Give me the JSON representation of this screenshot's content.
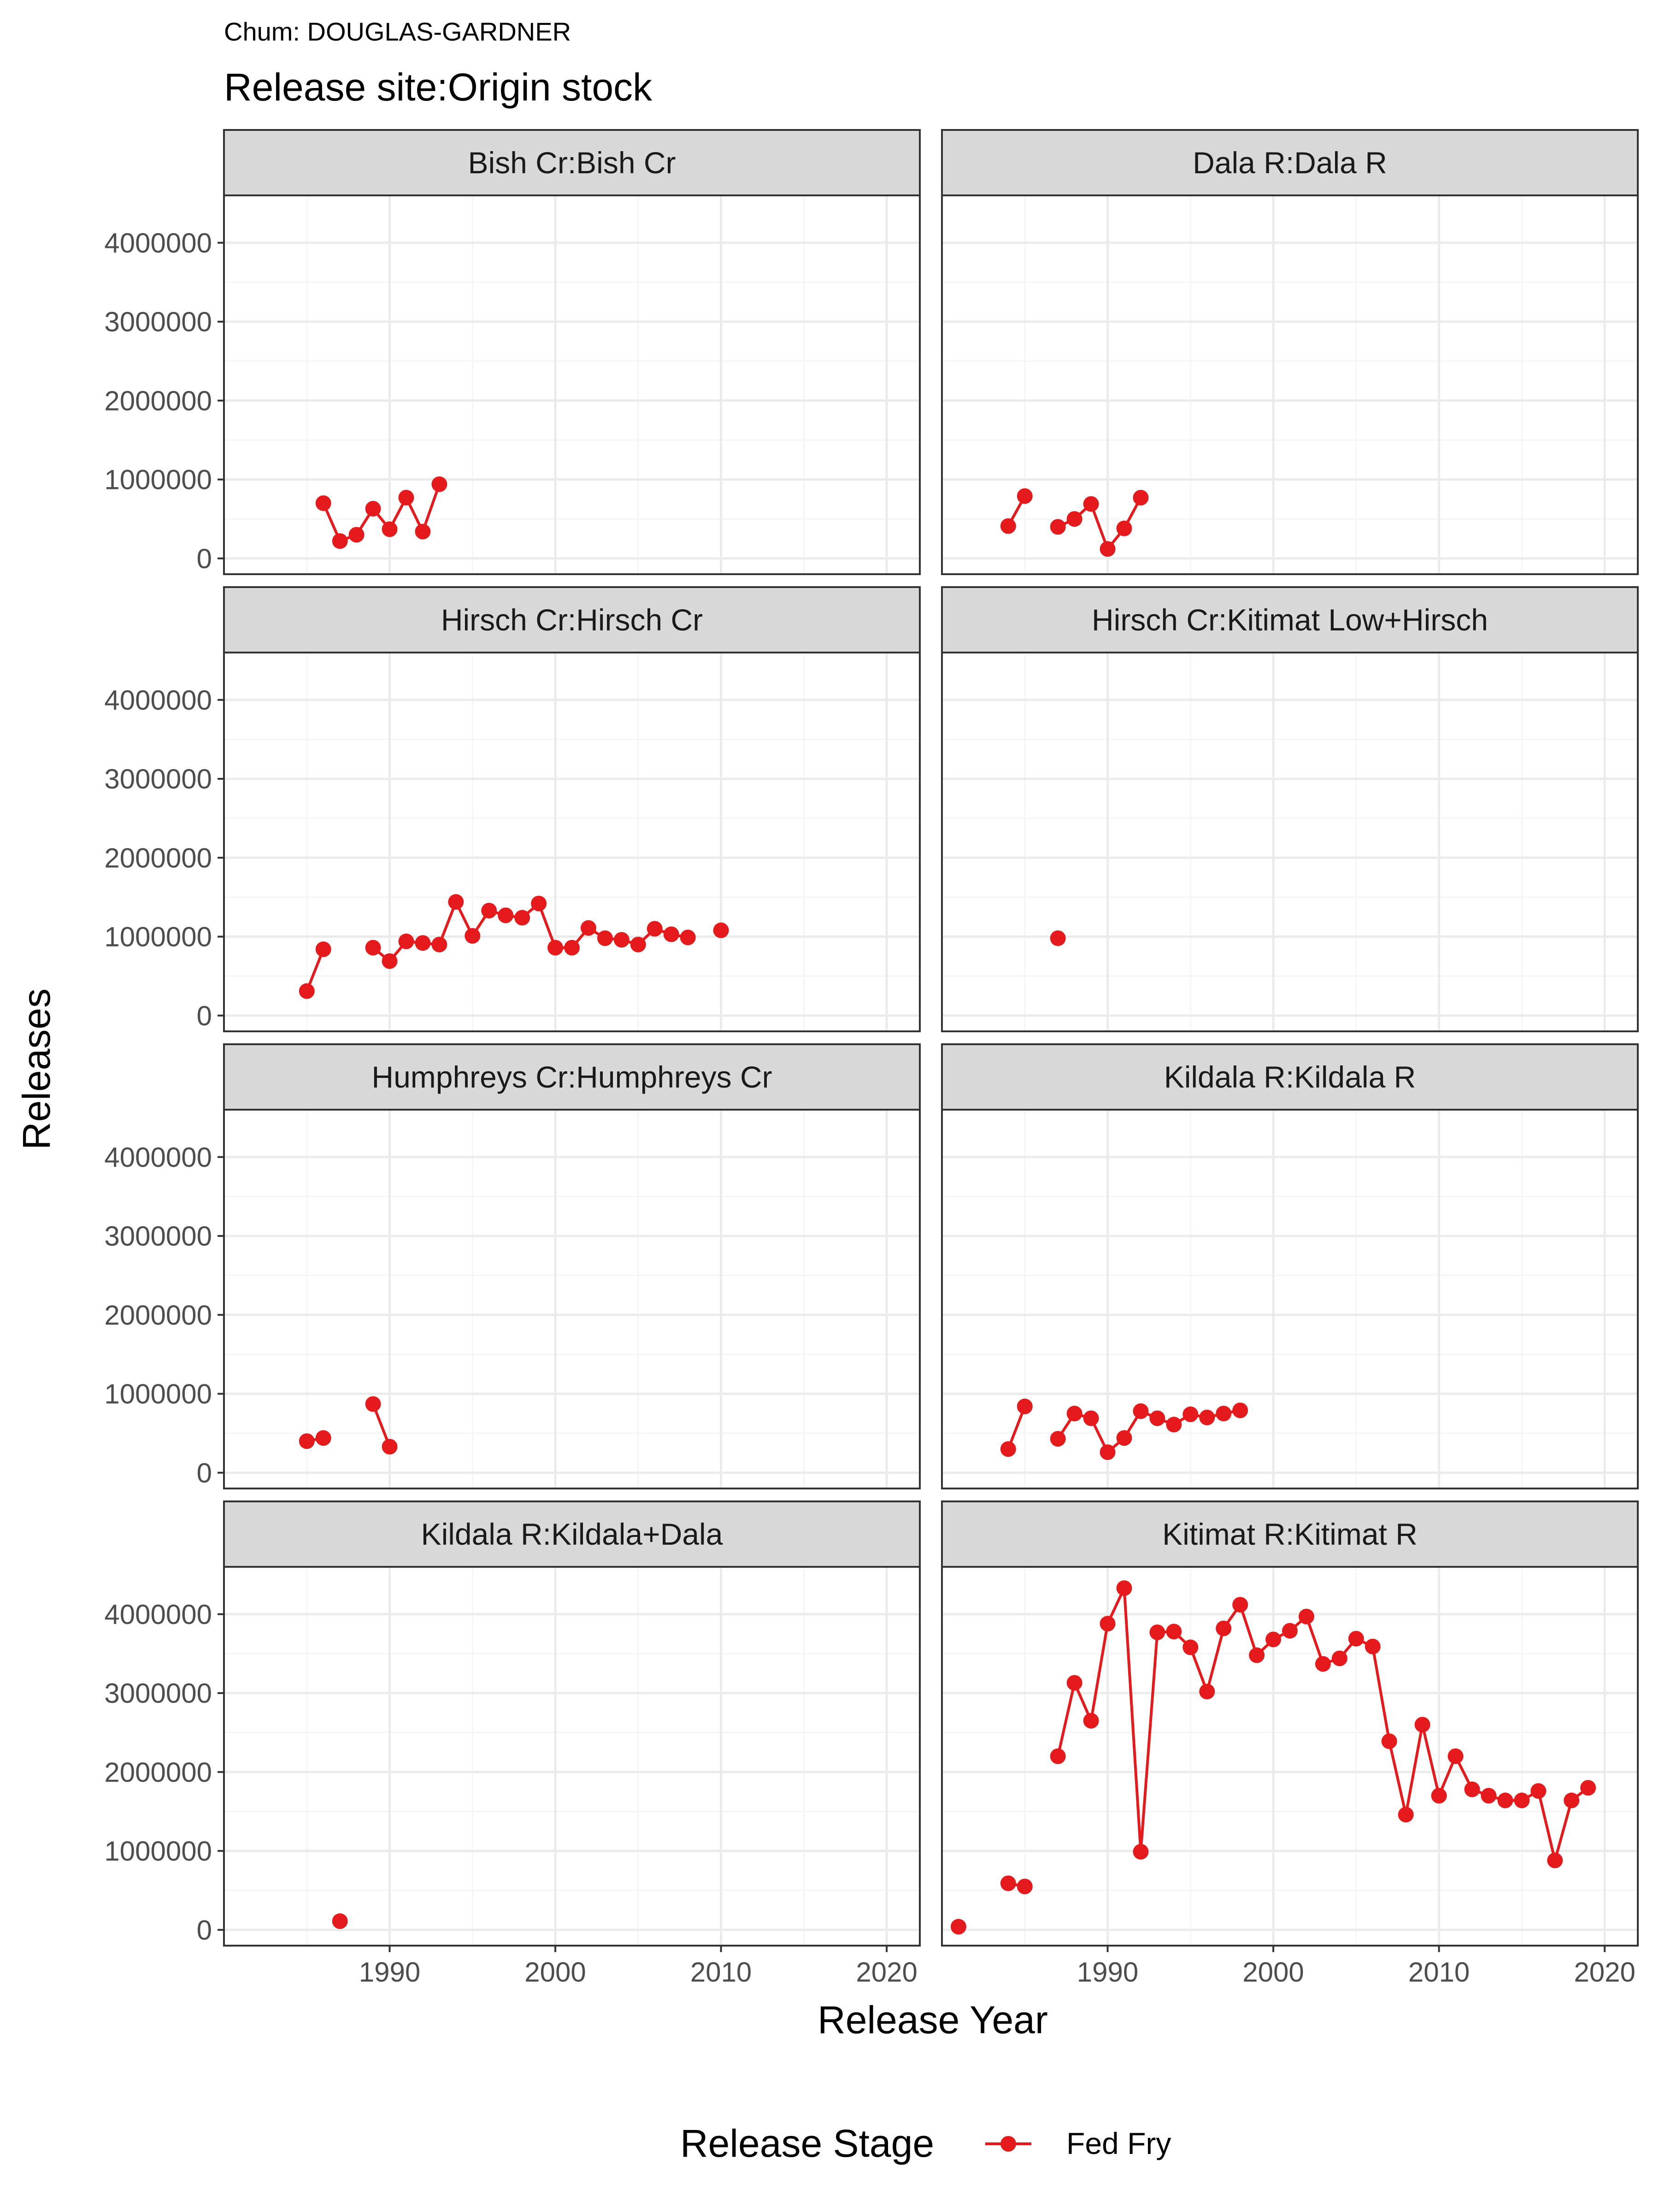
{
  "header": {
    "subtitle": "Chum: DOUGLAS-GARDNER",
    "title": "Release site:Origin stock"
  },
  "colors": {
    "series": "#E41A1C",
    "strip": "#D9D9D9",
    "panel_border": "#333333",
    "grid_major": "#EBEBEB",
    "grid_minor": "#F5F5F5"
  },
  "chart_data": {
    "type": "line",
    "facet_layout": {
      "rows": 4,
      "cols": 2
    },
    "xlabel": "Release Year",
    "ylabel": "Releases",
    "xlim": [
      1980,
      2022
    ],
    "ylim": [
      -200000,
      4600000
    ],
    "x_ticks": [
      1990,
      2000,
      2010,
      2020
    ],
    "y_ticks": [
      0,
      1000000,
      2000000,
      3000000,
      4000000
    ],
    "legend": {
      "title": "Release Stage",
      "position": "bottom",
      "entries": [
        "Fed Fry"
      ]
    },
    "panels": [
      {
        "label": "Bish Cr:Bish Cr",
        "segments": [
          [
            [
              1986,
              700000
            ],
            [
              1987,
              220000
            ],
            [
              1988,
              300000
            ],
            [
              1989,
              630000
            ],
            [
              1990,
              370000
            ],
            [
              1991,
              770000
            ],
            [
              1992,
              340000
            ],
            [
              1993,
              940000
            ]
          ]
        ]
      },
      {
        "label": "Dala R:Dala R",
        "segments": [
          [
            [
              1984,
              410000
            ],
            [
              1985,
              790000
            ]
          ],
          [
            [
              1987,
              400000
            ],
            [
              1988,
              500000
            ],
            [
              1989,
              690000
            ],
            [
              1990,
              120000
            ],
            [
              1991,
              380000
            ],
            [
              1992,
              770000
            ]
          ]
        ]
      },
      {
        "label": "Hirsch Cr:Hirsch Cr",
        "segments": [
          [
            [
              1985,
              310000
            ],
            [
              1986,
              840000
            ]
          ],
          [
            [
              1989,
              860000
            ],
            [
              1990,
              690000
            ],
            [
              1991,
              940000
            ],
            [
              1992,
              920000
            ],
            [
              1993,
              900000
            ],
            [
              1994,
              1440000
            ],
            [
              1995,
              1010000
            ],
            [
              1996,
              1330000
            ],
            [
              1997,
              1270000
            ],
            [
              1998,
              1240000
            ],
            [
              1999,
              1420000
            ],
            [
              2000,
              860000
            ],
            [
              2001,
              860000
            ],
            [
              2002,
              1110000
            ],
            [
              2003,
              980000
            ],
            [
              2004,
              960000
            ],
            [
              2005,
              900000
            ],
            [
              2006,
              1100000
            ],
            [
              2007,
              1030000
            ],
            [
              2008,
              990000
            ]
          ],
          [
            [
              2010,
              1080000
            ]
          ]
        ]
      },
      {
        "label": "Hirsch Cr:Kitimat Low+Hirsch",
        "segments": [
          [
            [
              1987,
              980000
            ]
          ]
        ]
      },
      {
        "label": "Humphreys Cr:Humphreys Cr",
        "segments": [
          [
            [
              1985,
              400000
            ],
            [
              1986,
              440000
            ]
          ],
          [
            [
              1989,
              870000
            ],
            [
              1990,
              330000
            ]
          ]
        ]
      },
      {
        "label": "Kildala R:Kildala R",
        "segments": [
          [
            [
              1984,
              300000
            ],
            [
              1985,
              840000
            ]
          ],
          [
            [
              1987,
              430000
            ],
            [
              1988,
              750000
            ],
            [
              1989,
              690000
            ],
            [
              1990,
              260000
            ],
            [
              1991,
              440000
            ],
            [
              1992,
              780000
            ],
            [
              1993,
              690000
            ],
            [
              1994,
              610000
            ],
            [
              1995,
              740000
            ],
            [
              1996,
              700000
            ],
            [
              1997,
              750000
            ],
            [
              1998,
              790000
            ]
          ]
        ]
      },
      {
        "label": "Kildala R:Kildala+Dala",
        "segments": [
          [
            [
              1987,
              110000
            ]
          ]
        ]
      },
      {
        "label": "Kitimat R:Kitimat R",
        "segments": [
          [
            [
              1981,
              40000
            ]
          ],
          [
            [
              1984,
              590000
            ],
            [
              1985,
              550000
            ]
          ],
          [
            [
              1987,
              2200000
            ],
            [
              1988,
              3130000
            ],
            [
              1989,
              2650000
            ],
            [
              1990,
              3880000
            ],
            [
              1991,
              4330000
            ],
            [
              1992,
              990000
            ],
            [
              1993,
              3770000
            ],
            [
              1994,
              3780000
            ],
            [
              1995,
              3580000
            ],
            [
              1996,
              3020000
            ],
            [
              1997,
              3820000
            ],
            [
              1998,
              4120000
            ],
            [
              1999,
              3480000
            ],
            [
              2000,
              3680000
            ],
            [
              2001,
              3790000
            ],
            [
              2002,
              3970000
            ],
            [
              2003,
              3370000
            ],
            [
              2004,
              3440000
            ],
            [
              2005,
              3690000
            ],
            [
              2006,
              3590000
            ],
            [
              2007,
              2390000
            ],
            [
              2008,
              1460000
            ],
            [
              2009,
              2600000
            ],
            [
              2010,
              1700000
            ],
            [
              2011,
              2200000
            ],
            [
              2012,
              1780000
            ],
            [
              2013,
              1700000
            ],
            [
              2014,
              1640000
            ],
            [
              2015,
              1640000
            ],
            [
              2016,
              1760000
            ],
            [
              2017,
              880000
            ],
            [
              2018,
              1640000
            ],
            [
              2019,
              1800000
            ]
          ]
        ]
      }
    ]
  }
}
